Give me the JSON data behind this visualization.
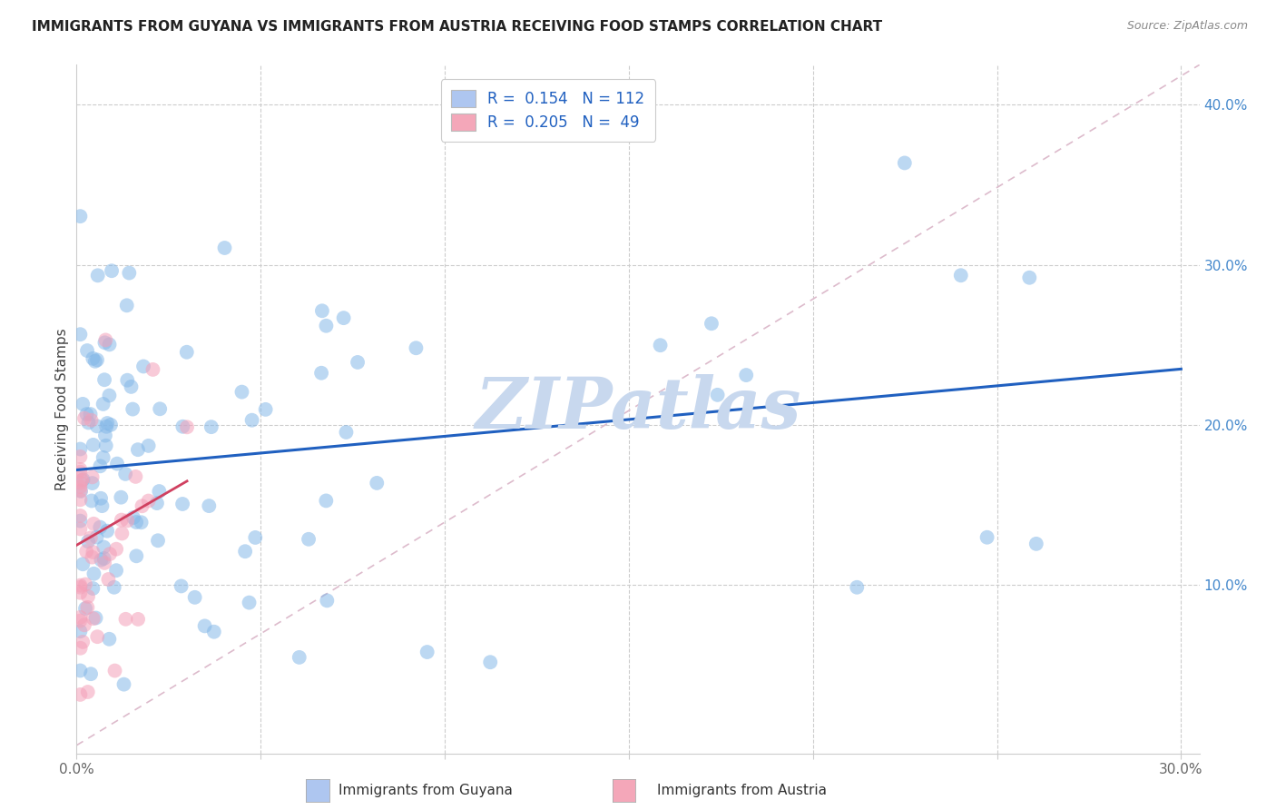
{
  "title": "IMMIGRANTS FROM GUYANA VS IMMIGRANTS FROM AUSTRIA RECEIVING FOOD STAMPS CORRELATION CHART",
  "source": "Source: ZipAtlas.com",
  "ylabel": "Receiving Food Stamps",
  "xlim": [
    0.0,
    0.305
  ],
  "ylim": [
    -0.005,
    0.425
  ],
  "x_ticks": [
    0.0,
    0.05,
    0.1,
    0.15,
    0.2,
    0.25,
    0.3
  ],
  "x_tick_labels": [
    "0.0%",
    "",
    "",
    "",
    "",
    "",
    "30.0%"
  ],
  "y_ticks_right": [
    0.1,
    0.2,
    0.3,
    0.4
  ],
  "y_tick_labels_right": [
    "10.0%",
    "20.0%",
    "30.0%",
    "40.0%"
  ],
  "legend_color1": "#aec6f0",
  "legend_color2": "#f4a7b9",
  "scatter_color1": "#85b8e8",
  "scatter_color2": "#f4a0b8",
  "line_color1": "#2060c0",
  "line_color2": "#d04060",
  "ref_line_color": "#ddbbcc",
  "watermark": "ZIPatlas",
  "watermark_color": "#c8d8ee",
  "bottom_label1": "Immigrants from Guyana",
  "bottom_label2": "Immigrants from Austria",
  "blue_line_x0": 0.0,
  "blue_line_y0": 0.172,
  "blue_line_x1": 0.3,
  "blue_line_y1": 0.235,
  "red_line_x0": 0.0,
  "red_line_y0": 0.125,
  "red_line_x1": 0.03,
  "red_line_y1": 0.165
}
